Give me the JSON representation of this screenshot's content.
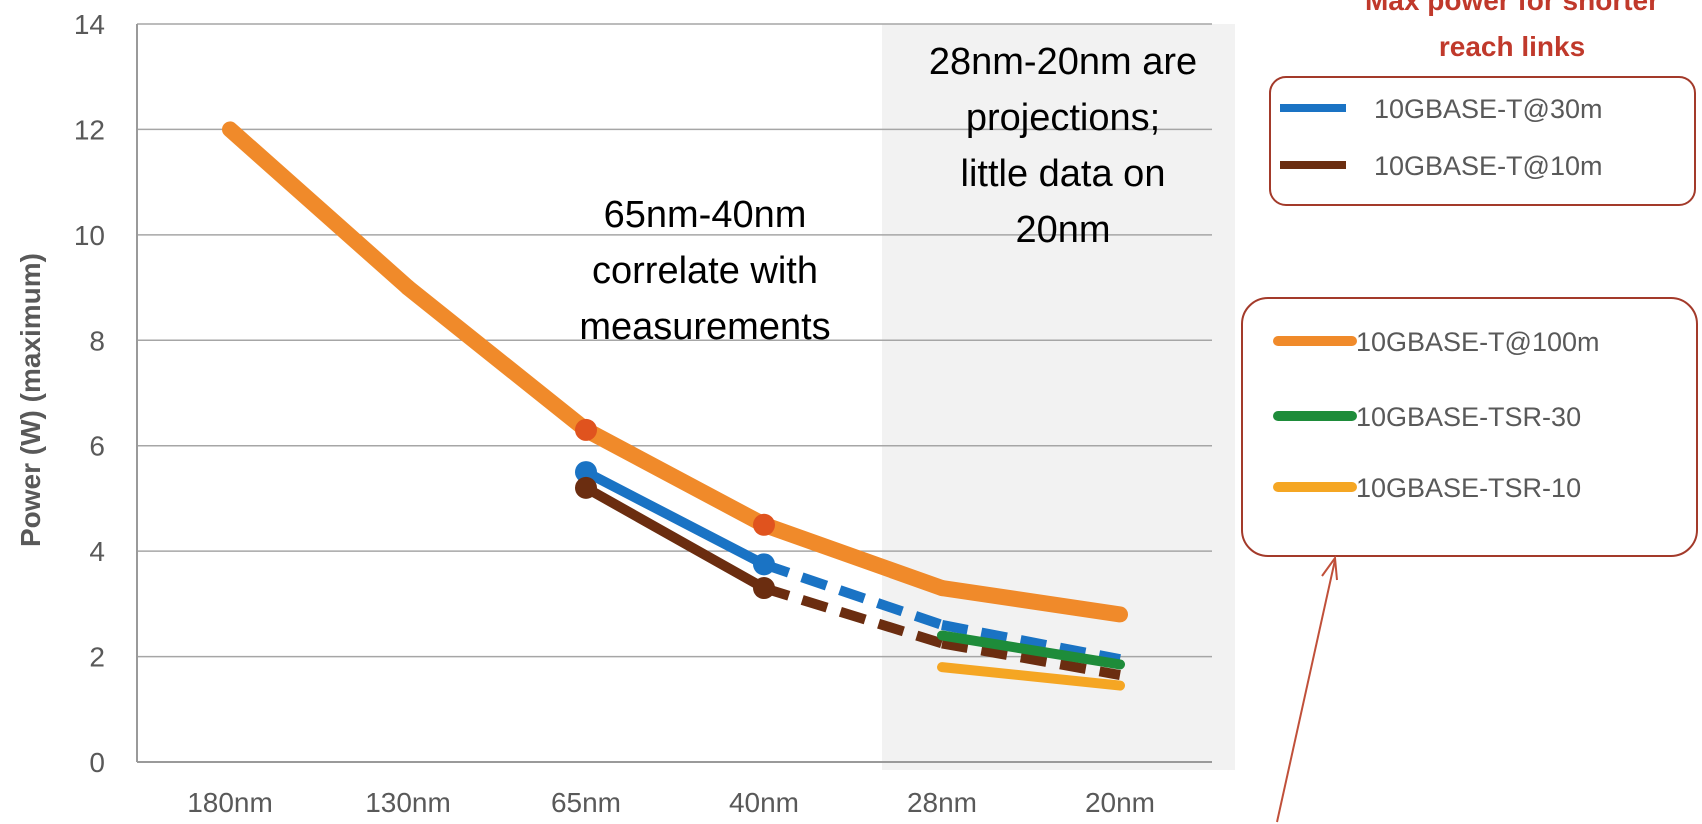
{
  "chart_data": {
    "type": "line",
    "ylabel": "Power (W) (maximum)",
    "xlabel": "",
    "categories": [
      "180nm",
      "130nm",
      "65nm",
      "40nm",
      "28nm",
      "20nm"
    ],
    "ylim": [
      0,
      14
    ],
    "yticks": [
      "0",
      "2",
      "4",
      "6",
      "8",
      "10",
      "12",
      "14"
    ],
    "grid": true,
    "projection_region": [
      "28nm",
      "20nm"
    ],
    "series": [
      {
        "name": "10GBASE-T@100m",
        "color": "#f08a2a",
        "values": [
          12,
          9.0,
          6.3,
          4.5,
          3.3,
          2.8
        ],
        "measured": [
          "65nm",
          "40nm"
        ]
      },
      {
        "name": "10GBASE-T@30m",
        "color": "#1a73c4",
        "values": [
          null,
          null,
          5.5,
          3.75,
          2.6,
          1.95
        ],
        "measured": [
          "65nm",
          "40nm"
        ],
        "dashed_from": "40nm"
      },
      {
        "name": "10GBASE-T@10m",
        "color": "#6b2d10",
        "values": [
          null,
          null,
          5.2,
          3.3,
          2.25,
          1.65
        ],
        "measured": [
          "65nm",
          "40nm"
        ],
        "dashed_from": "40nm"
      },
      {
        "name": "10GBASE-TSR-30",
        "color": "#1e8c3a",
        "values": [
          null,
          null,
          null,
          null,
          2.4,
          1.85
        ]
      },
      {
        "name": "10GBASE-TSR-10",
        "color": "#f5a623",
        "values": [
          null,
          null,
          null,
          null,
          1.8,
          1.45
        ]
      }
    ],
    "annotations": {
      "measured": [
        "65nm-40nm",
        "correlate with",
        "measurements"
      ],
      "projections": [
        "28nm-20nm are",
        "projections;",
        "little data on",
        "20nm"
      ]
    },
    "legend_top": {
      "title": [
        "Max power for shorter",
        "reach links"
      ],
      "items": [
        "10GBASE-T@30m",
        "10GBASE-T@10m"
      ]
    },
    "legend_bottom": {
      "items": [
        "10GBASE-T@100m",
        "10GBASE-TSR-30",
        "10GBASE-TSR-10"
      ]
    }
  },
  "colors": {
    "legend_box_border": "#a33a2a",
    "arrow": "#c0503a",
    "measured_marker": "#e0531e",
    "projection_shade": "#f2f2f2"
  }
}
